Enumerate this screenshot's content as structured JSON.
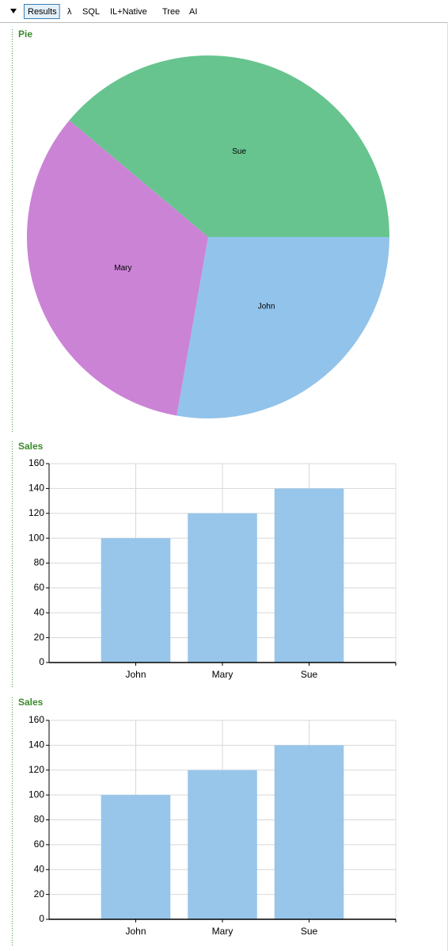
{
  "toolbar": {
    "tabs": [
      "Results",
      "λ",
      "SQL",
      "IL+Native",
      "Tree",
      "AI"
    ],
    "selected": 0
  },
  "chart_data": [
    {
      "type": "pie",
      "title": "Pie",
      "categories": [
        "John",
        "Mary",
        "Sue"
      ],
      "values": [
        100,
        120,
        140
      ],
      "colors": [
        "#92c3ea",
        "#cb83d6",
        "#67c48e"
      ]
    },
    {
      "type": "bar",
      "title": "Sales",
      "categories": [
        "John",
        "Mary",
        "Sue"
      ],
      "values": [
        100,
        120,
        140
      ],
      "color": "#92c3ea",
      "ylim": [
        0,
        160
      ],
      "yticks": [
        0,
        20,
        40,
        60,
        80,
        100,
        120,
        140,
        160
      ],
      "grid": true
    },
    {
      "type": "bar",
      "title": "Sales",
      "categories": [
        "John",
        "Mary",
        "Sue"
      ],
      "values": [
        100,
        120,
        140
      ],
      "color": "#92c3ea",
      "ylim": [
        0,
        160
      ],
      "yticks": [
        0,
        20,
        40,
        60,
        80,
        100,
        120,
        140,
        160
      ],
      "grid": true
    }
  ]
}
